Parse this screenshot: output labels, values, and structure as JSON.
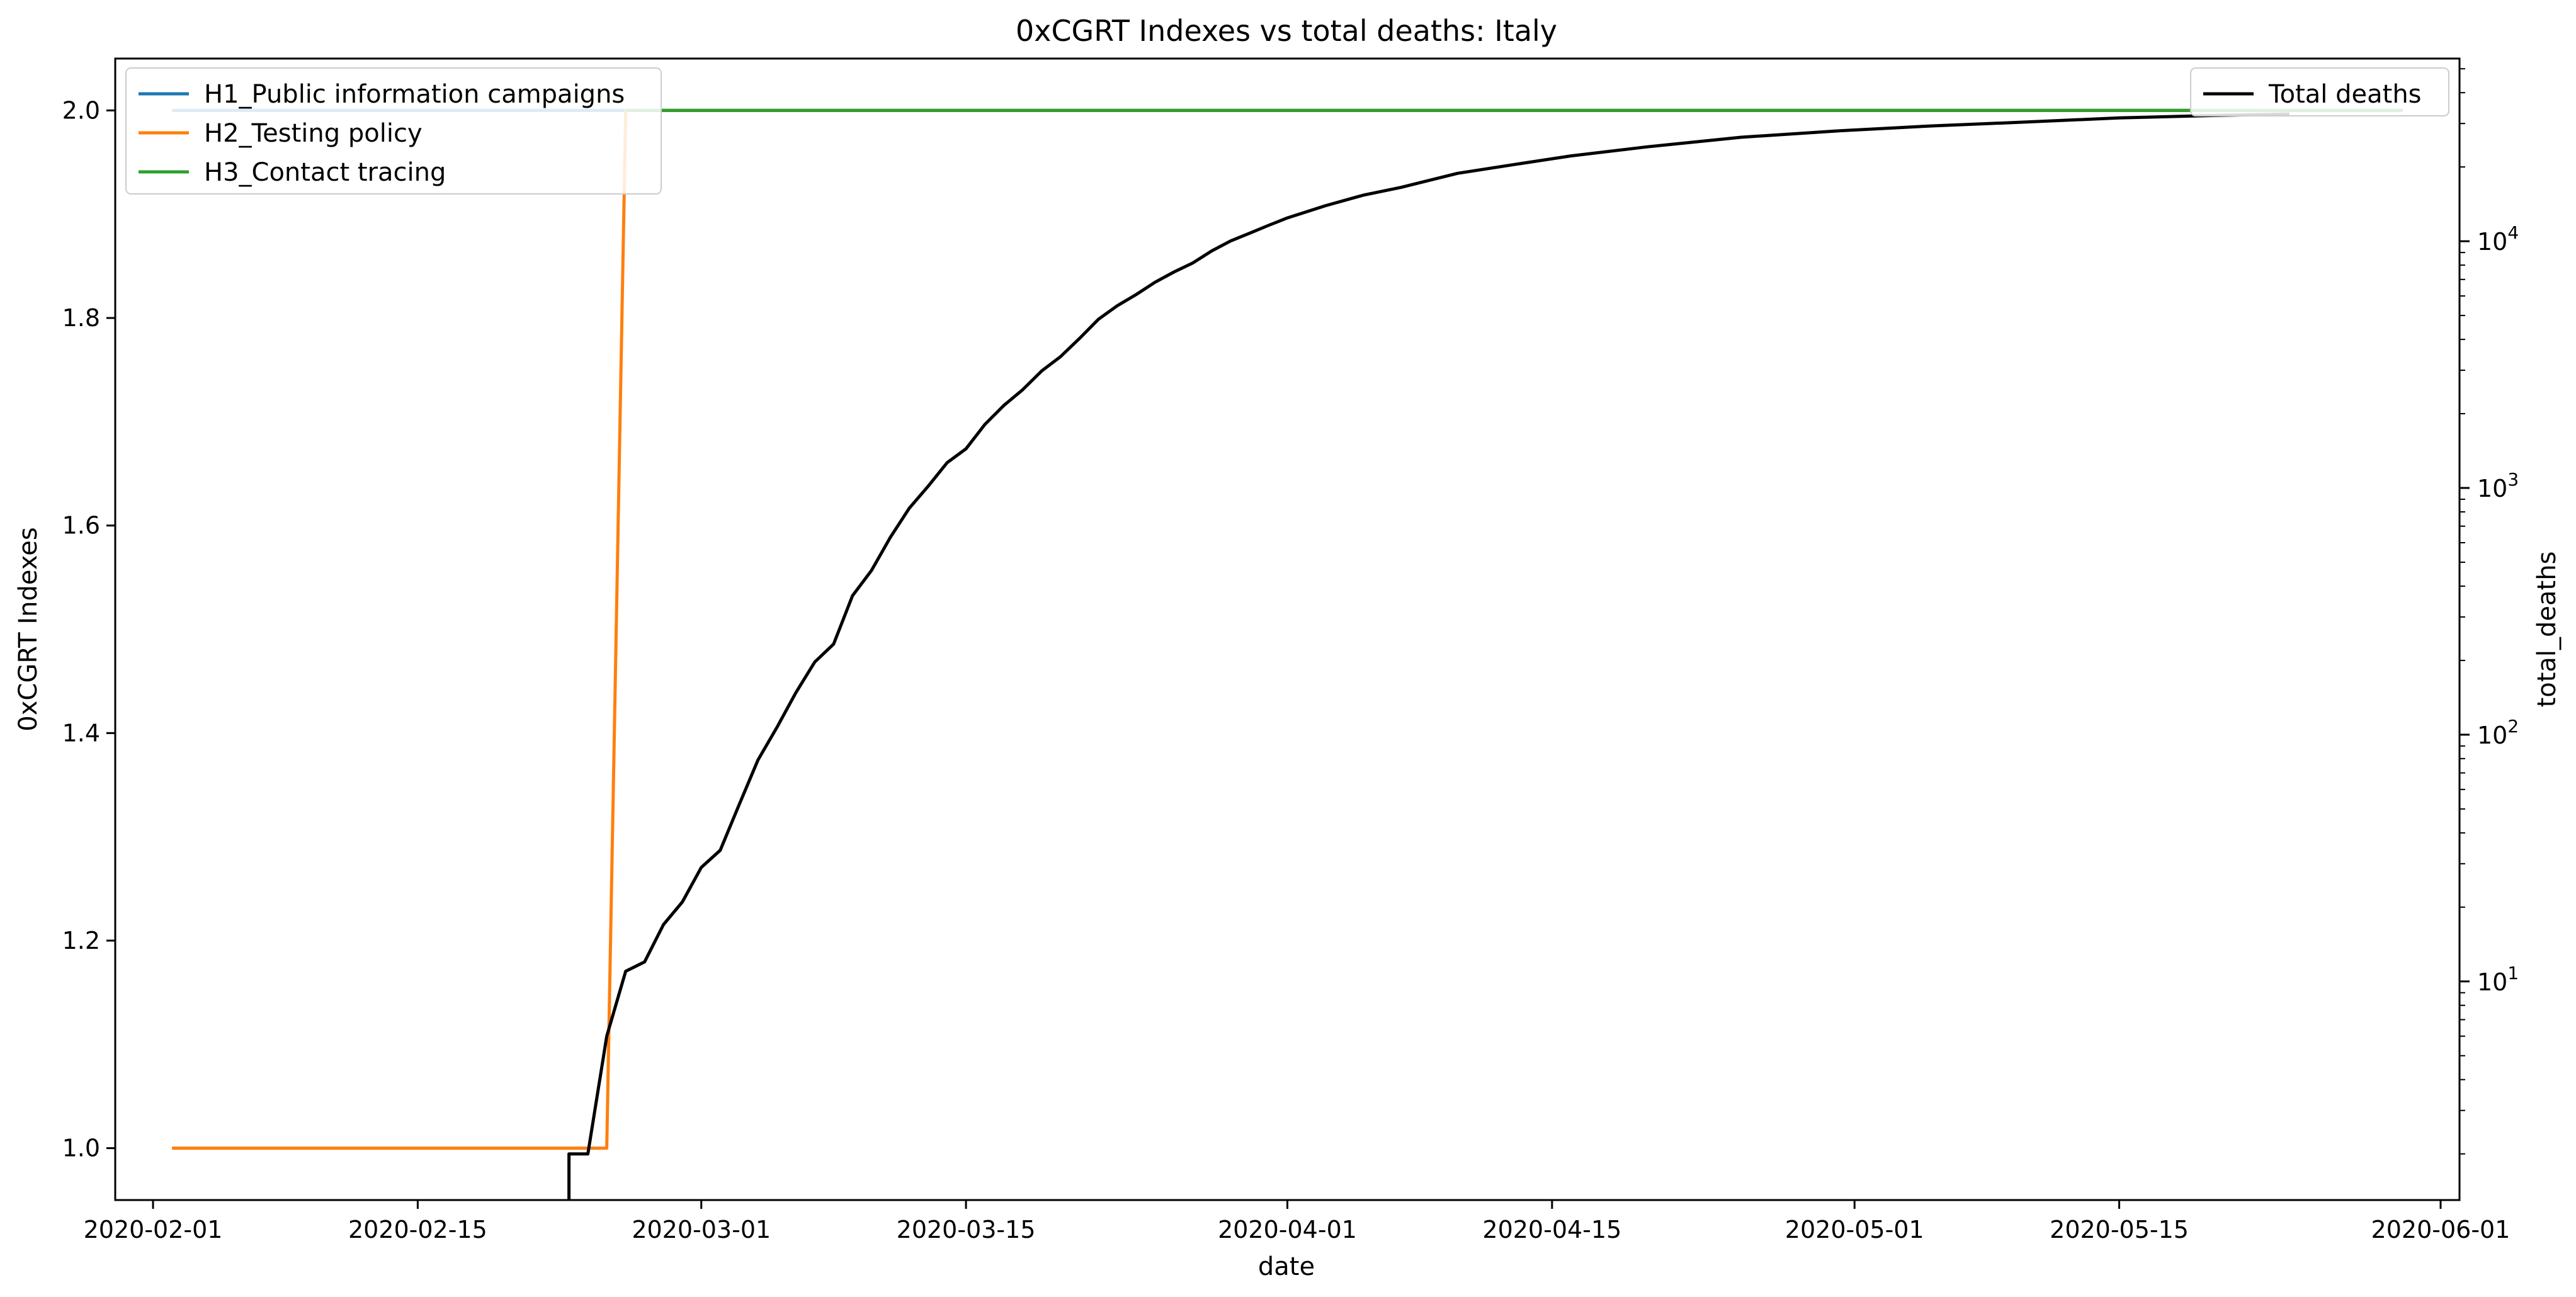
{
  "chart_data": {
    "type": "line",
    "title": "0xCGRT Indexes vs total deaths:  Italy",
    "xlabel": "date",
    "ylabel": "0xCGRT Indexes",
    "ylabel_right": "total_deaths",
    "x_range": [
      "2020-01-30",
      "2020-06-02"
    ],
    "x_ticks": [
      "2020-02-01",
      "2020-02-15",
      "2020-03-01",
      "2020-03-15",
      "2020-04-01",
      "2020-04-15",
      "2020-05-01",
      "2020-05-15",
      "2020-06-01"
    ],
    "ylim": [
      0.95,
      2.05
    ],
    "y_ticks": [
      1.0,
      1.2,
      1.4,
      1.6,
      1.8,
      2.0
    ],
    "ylim_right": [
      1.3,
      55000
    ],
    "y_right_scale": "log",
    "y_right_ticks": [
      10,
      100,
      1000,
      10000
    ],
    "y_right_tick_labels": [
      {
        "base": "10",
        "exp": "1"
      },
      {
        "base": "10",
        "exp": "2"
      },
      {
        "base": "10",
        "exp": "3"
      },
      {
        "base": "10",
        "exp": "4"
      }
    ],
    "grid": false,
    "legend_left_position": "top-left",
    "legend_right_position": "top-right",
    "series": [
      {
        "name": "H1_Public information campaigns",
        "axis": "left",
        "color": "#1f77b4",
        "x": [
          "2020-02-02",
          "2020-05-30"
        ],
        "y": [
          2,
          2
        ]
      },
      {
        "name": "H2_Testing policy",
        "axis": "left",
        "color": "#ff7f0e",
        "x": [
          "2020-02-02",
          "2020-02-25",
          "2020-02-26",
          "2020-05-30"
        ],
        "y": [
          1,
          1,
          2,
          2
        ]
      },
      {
        "name": "H3_Contact tracing",
        "axis": "left",
        "color": "#2ca02c",
        "x": [
          "2020-02-26",
          "2020-05-30"
        ],
        "y": [
          2,
          2
        ]
      },
      {
        "name": "Total deaths",
        "axis": "right",
        "color": "#000000",
        "x": [
          "2020-02-23",
          "2020-02-23",
          "2020-02-24",
          "2020-02-25",
          "2020-02-26",
          "2020-02-27",
          "2020-02-28",
          "2020-02-29",
          "2020-03-01",
          "2020-03-02",
          "2020-03-03",
          "2020-03-04",
          "2020-03-05",
          "2020-03-06",
          "2020-03-07",
          "2020-03-08",
          "2020-03-09",
          "2020-03-10",
          "2020-03-11",
          "2020-03-12",
          "2020-03-13",
          "2020-03-14",
          "2020-03-15",
          "2020-03-16",
          "2020-03-17",
          "2020-03-18",
          "2020-03-19",
          "2020-03-20",
          "2020-03-21",
          "2020-03-22",
          "2020-03-23",
          "2020-03-24",
          "2020-03-25",
          "2020-03-26",
          "2020-03-27",
          "2020-03-28",
          "2020-03-29",
          "2020-03-30",
          "2020-03-31",
          "2020-04-01",
          "2020-04-03",
          "2020-04-05",
          "2020-04-07",
          "2020-04-10",
          "2020-04-13",
          "2020-04-16",
          "2020-04-20",
          "2020-04-25",
          "2020-04-30",
          "2020-05-05",
          "2020-05-10",
          "2020-05-15",
          "2020-05-20",
          "2020-05-24"
        ],
        "y": [
          1,
          2,
          2,
          6,
          11,
          12,
          17,
          21,
          29,
          34,
          52,
          79,
          107,
          148,
          197,
          233,
          366,
          463,
          631,
          827,
          1016,
          1266,
          1441,
          1809,
          2158,
          2503,
          2978,
          3405,
          4032,
          4825,
          5476,
          6077,
          6820,
          7503,
          8165,
          9134,
          10023,
          10779,
          11591,
          12428,
          13915,
          15362,
          16523,
          18849,
          20465,
          22170,
          24114,
          26384,
          27967,
          29315,
          30395,
          31610,
          32330,
          32785
        ]
      }
    ]
  }
}
